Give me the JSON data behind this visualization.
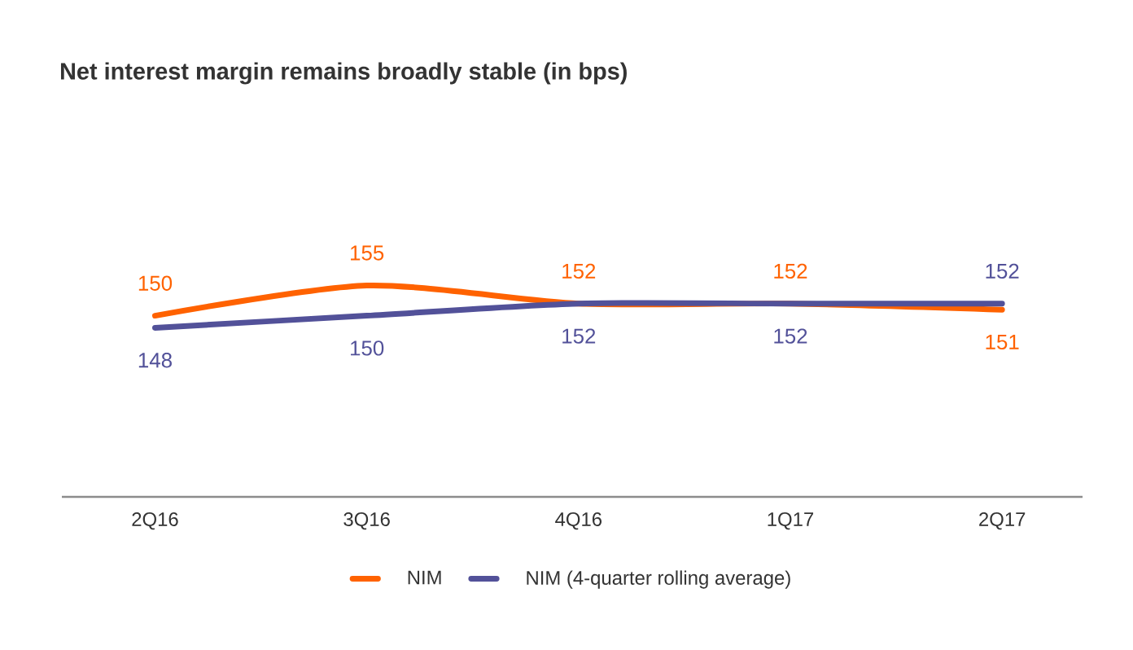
{
  "chart_data": {
    "type": "line",
    "title": "Net interest margin remains broadly stable (in bps)",
    "categories": [
      "2Q16",
      "3Q16",
      "4Q16",
      "1Q17",
      "2Q17"
    ],
    "series": [
      {
        "name": "NIM",
        "color": "#ff6200",
        "values": [
          150,
          155,
          152,
          152,
          151
        ]
      },
      {
        "name": "NIM (4-quarter rolling average)",
        "color": "#525199",
        "values": [
          148,
          150,
          152,
          152,
          152
        ]
      }
    ],
    "tick_labels": "x",
    "data_labels": true,
    "legend": "bottom",
    "grid": false,
    "marker": "none",
    "line_style": "solid"
  }
}
